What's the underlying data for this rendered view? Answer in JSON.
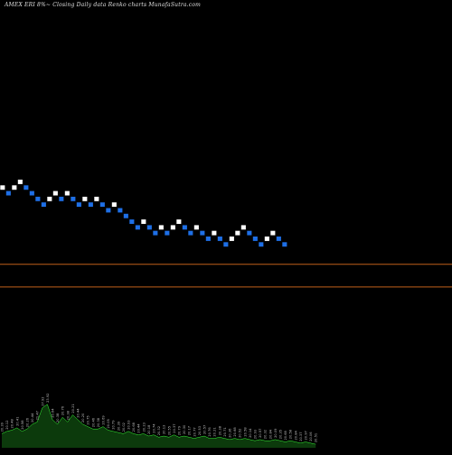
{
  "chart_data": {
    "type": "renko",
    "title": "AMEX  ERI 8%~  Closing Daily data  Renko  charts MunafaSutra.com",
    "colors": {
      "background": "#000000",
      "up_brick": "#ffffff",
      "down_brick": "#1e6fe6",
      "brick_outline": "#000000",
      "reference_line": "#c0601a",
      "volume_fill": "#0c3a0c",
      "volume_line": "#38ff38",
      "volume_label": "#bdbdbd"
    },
    "reference_levels": [
      {
        "name": "upper",
        "value": 11.0
      },
      {
        "name": "lower",
        "value": 7.0
      }
    ],
    "ylim": [
      -22,
      51
    ],
    "bricks": [
      {
        "dir": "up",
        "level": 24
      },
      {
        "dir": "down",
        "level": 23
      },
      {
        "dir": "up",
        "level": 24
      },
      {
        "dir": "up",
        "level": 25
      },
      {
        "dir": "down",
        "level": 24
      },
      {
        "dir": "down",
        "level": 23
      },
      {
        "dir": "down",
        "level": 22
      },
      {
        "dir": "down",
        "level": 21
      },
      {
        "dir": "up",
        "level": 22
      },
      {
        "dir": "up",
        "level": 23
      },
      {
        "dir": "down",
        "level": 22
      },
      {
        "dir": "up",
        "level": 23
      },
      {
        "dir": "down",
        "level": 22
      },
      {
        "dir": "down",
        "level": 21
      },
      {
        "dir": "up",
        "level": 22
      },
      {
        "dir": "down",
        "level": 21
      },
      {
        "dir": "up",
        "level": 22
      },
      {
        "dir": "down",
        "level": 21
      },
      {
        "dir": "down",
        "level": 20
      },
      {
        "dir": "up",
        "level": 21
      },
      {
        "dir": "down",
        "level": 20
      },
      {
        "dir": "down",
        "level": 19
      },
      {
        "dir": "down",
        "level": 18
      },
      {
        "dir": "down",
        "level": 17
      },
      {
        "dir": "up",
        "level": 18
      },
      {
        "dir": "down",
        "level": 17
      },
      {
        "dir": "down",
        "level": 16
      },
      {
        "dir": "up",
        "level": 17
      },
      {
        "dir": "down",
        "level": 16
      },
      {
        "dir": "up",
        "level": 17
      },
      {
        "dir": "up",
        "level": 18
      },
      {
        "dir": "down",
        "level": 17
      },
      {
        "dir": "down",
        "level": 16
      },
      {
        "dir": "up",
        "level": 17
      },
      {
        "dir": "down",
        "level": 16
      },
      {
        "dir": "down",
        "level": 15
      },
      {
        "dir": "up",
        "level": 16
      },
      {
        "dir": "down",
        "level": 15
      },
      {
        "dir": "down",
        "level": 14
      },
      {
        "dir": "up",
        "level": 15
      },
      {
        "dir": "up",
        "level": 16
      },
      {
        "dir": "up",
        "level": 17
      },
      {
        "dir": "down",
        "level": 16
      },
      {
        "dir": "down",
        "level": 15
      },
      {
        "dir": "down",
        "level": 14
      },
      {
        "dir": "up",
        "level": 15
      },
      {
        "dir": "up",
        "level": 16
      },
      {
        "dir": "down",
        "level": 15
      },
      {
        "dir": "down",
        "level": 14
      }
    ],
    "volume": [
      {
        "label": "20.39",
        "value": 12
      },
      {
        "label": "20.12",
        "value": 14
      },
      {
        "label": "20.48",
        "value": 15
      },
      {
        "label": "20.41",
        "value": 17
      },
      {
        "label": "20.58",
        "value": 14
      },
      {
        "label": "20.26",
        "value": 16
      },
      {
        "label": "20.44",
        "value": 20
      },
      {
        "label": "21.47",
        "value": 22
      },
      {
        "label": "27.92",
        "value": 34
      },
      {
        "label": "23.92",
        "value": 37
      },
      {
        "label": "20.64",
        "value": 24
      },
      {
        "label": "20.38",
        "value": 20
      },
      {
        "label": "20.76",
        "value": 26
      },
      {
        "label": "20.38",
        "value": 22
      },
      {
        "label": "20.21",
        "value": 28
      },
      {
        "label": "20.44",
        "value": 24
      },
      {
        "label": "20.20",
        "value": 20
      },
      {
        "label": "20.75",
        "value": 18
      },
      {
        "label": "20.46",
        "value": 16
      },
      {
        "label": "20.38",
        "value": 16
      },
      {
        "label": "20.69",
        "value": 18
      },
      {
        "label": "20.05",
        "value": 15
      },
      {
        "label": "20.79",
        "value": 14
      },
      {
        "label": "20.39",
        "value": 13
      },
      {
        "label": "20.02",
        "value": 12
      },
      {
        "label": "20.93",
        "value": 14
      },
      {
        "label": "20.68",
        "value": 12
      },
      {
        "label": "20.44",
        "value": 11
      },
      {
        "label": "20.23",
        "value": 12
      },
      {
        "label": "20.18",
        "value": 10
      },
      {
        "label": "20.74",
        "value": 11
      },
      {
        "label": "20.32",
        "value": 9
      },
      {
        "label": "20.13",
        "value": 10
      },
      {
        "label": "20.55",
        "value": 9
      },
      {
        "label": "20.37",
        "value": 11
      },
      {
        "label": "20.79",
        "value": 9
      },
      {
        "label": "20.30",
        "value": 10
      },
      {
        "label": "20.17",
        "value": 9
      },
      {
        "label": "20.77",
        "value": 8
      },
      {
        "label": "20.53",
        "value": 9
      },
      {
        "label": "20.57",
        "value": 10
      },
      {
        "label": "20.76",
        "value": 8
      },
      {
        "label": "20.21",
        "value": 8
      },
      {
        "label": "20.38",
        "value": 9
      },
      {
        "label": "20.71",
        "value": 8
      },
      {
        "label": "20.36",
        "value": 7
      },
      {
        "label": "20.68",
        "value": 8
      },
      {
        "label": "20.52",
        "value": 7
      },
      {
        "label": "20.58",
        "value": 8
      },
      {
        "label": "20.14",
        "value": 7
      },
      {
        "label": "20.93",
        "value": 6
      },
      {
        "label": "20.57",
        "value": 7
      },
      {
        "label": "20.32",
        "value": 6
      },
      {
        "label": "20.84",
        "value": 6
      },
      {
        "label": "20.09",
        "value": 7
      },
      {
        "label": "20.35",
        "value": 6
      },
      {
        "label": "20.68",
        "value": 5
      },
      {
        "label": "20.58",
        "value": 6
      },
      {
        "label": "20.84",
        "value": 5
      },
      {
        "label": "20.37",
        "value": 4
      },
      {
        "label": "20.97",
        "value": 5
      },
      {
        "label": "20.06",
        "value": 4
      },
      {
        "label": "20.51",
        "value": 3
      }
    ]
  }
}
